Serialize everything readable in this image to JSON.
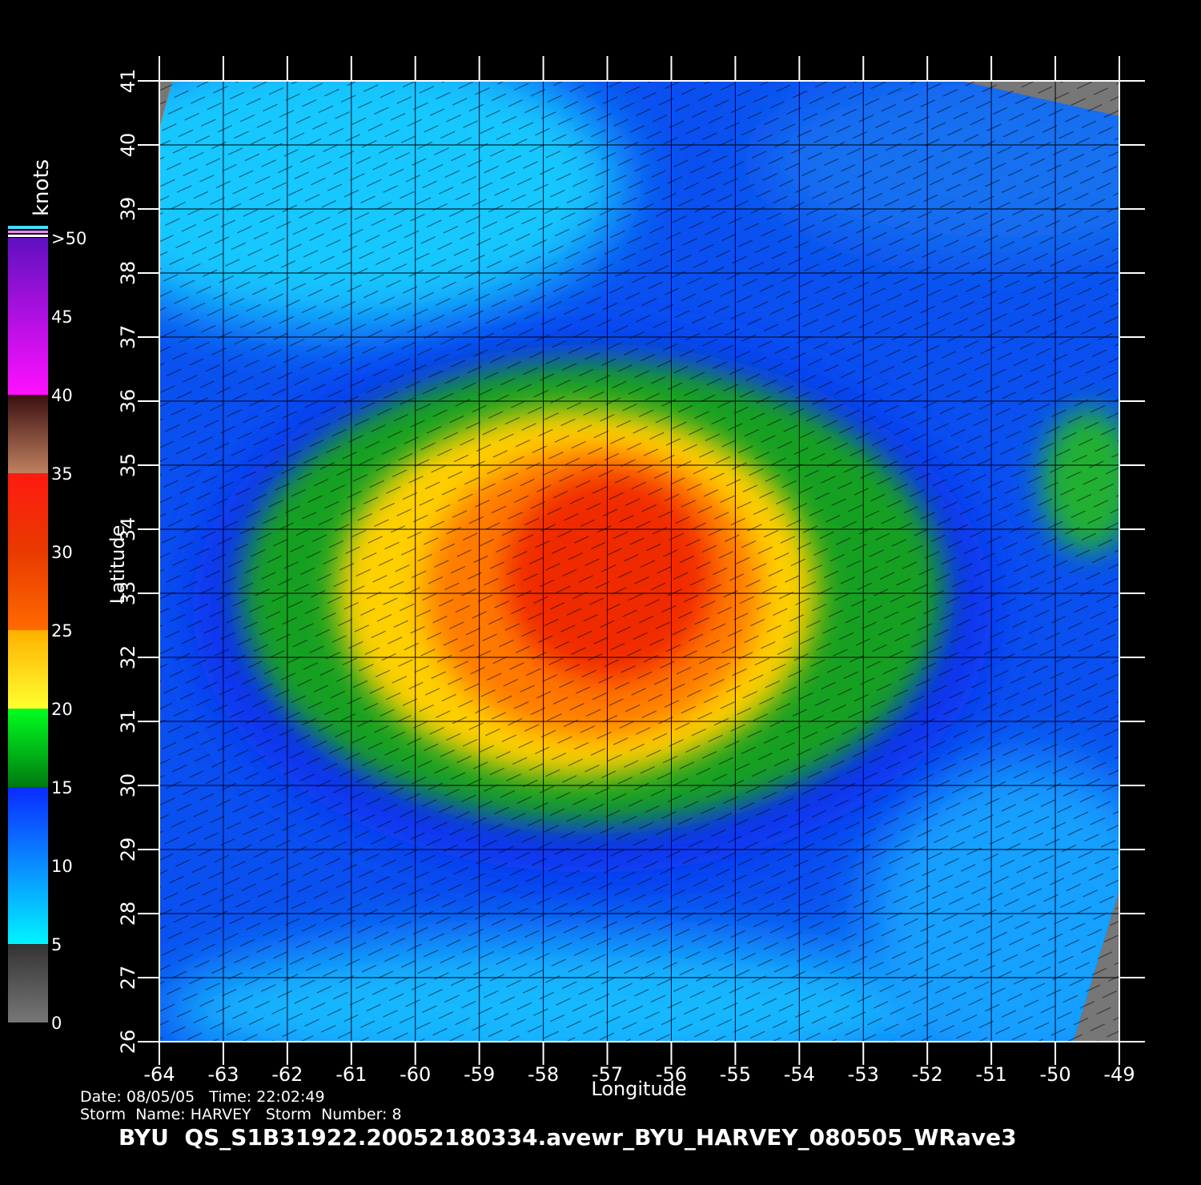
{
  "map": {
    "x_axis": {
      "label": "Longitude",
      "range": [
        -64,
        -49
      ],
      "ticks": [
        -64,
        -63,
        -62,
        -61,
        -60,
        -59,
        -58,
        -57,
        -56,
        -55,
        -54,
        -53,
        -52,
        -51,
        -50,
        -49
      ]
    },
    "y_axis": {
      "label": "Latitude",
      "range": [
        26,
        41
      ],
      "ticks": [
        26,
        27,
        28,
        29,
        30,
        31,
        32,
        33,
        34,
        35,
        36,
        37,
        38,
        39,
        40,
        41
      ]
    }
  },
  "colorbar": {
    "title": "knots",
    "range": [
      0,
      50
    ],
    "ticks": [
      0,
      5,
      10,
      15,
      20,
      25,
      30,
      35,
      40,
      45,
      {
        "value": 50,
        "label": ">50"
      }
    ]
  },
  "info": {
    "date_line": "Date: 08/05/05   Time: 22:02:49",
    "storm_line": "Storm  Name: HARVEY   Storm  Number: 8",
    "file": "BYU  QS_S1B31922.20052180334.avewr_BYU_HARVEY_080505_WRave3"
  }
}
